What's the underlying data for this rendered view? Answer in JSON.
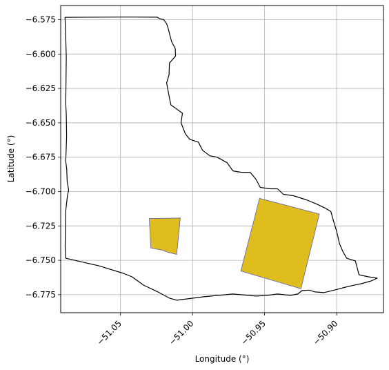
{
  "chart_data": {
    "type": "map",
    "title": "",
    "xlabel": "Longitude (°)",
    "ylabel": "Latitude (°)",
    "xlim": [
      -51.0915,
      -50.8675
    ],
    "ylim": [
      -6.7881,
      -6.5647
    ],
    "grid": true,
    "xticks": [
      -51.05,
      -51.0,
      -50.95,
      -50.9
    ],
    "xtick_labels": [
      "−51.05",
      "−51.00",
      "−50.95",
      "−50.90"
    ],
    "yticks": [
      -6.575,
      -6.6,
      -6.625,
      -6.65,
      -6.675,
      -6.7,
      -6.725,
      -6.75,
      -6.775
    ],
    "ytick_labels": [
      "−6.575",
      "−6.600",
      "−6.625",
      "−6.650",
      "−6.675",
      "−6.700",
      "−6.725",
      "−6.750",
      "−6.775"
    ],
    "colors": {
      "boundary_stroke": "#000000",
      "patch_fill": "#e0bd1f",
      "patch_stroke": "#5d5cb0",
      "grid": "#b0b0b0"
    },
    "boundary": [
      [
        -51.0885,
        -6.5733
      ],
      [
        -51.0445,
        -6.5731
      ],
      [
        -51.0245,
        -6.5732
      ],
      [
        -51.023,
        -6.5742
      ],
      [
        -51.02,
        -6.575
      ],
      [
        -51.018,
        -6.5779
      ],
      [
        -51.017,
        -6.581
      ],
      [
        -51.0155,
        -6.5872
      ],
      [
        -51.0145,
        -6.591
      ],
      [
        -51.012,
        -6.596
      ],
      [
        -51.0118,
        -6.6015
      ],
      [
        -51.016,
        -6.6065
      ],
      [
        -51.0163,
        -6.615
      ],
      [
        -51.018,
        -6.621
      ],
      [
        -51.016,
        -6.632
      ],
      [
        -51.015,
        -6.637
      ],
      [
        -51.011,
        -6.64
      ],
      [
        -51.007,
        -6.643
      ],
      [
        -51.008,
        -6.65
      ],
      [
        -51.005,
        -6.658
      ],
      [
        -51.002,
        -6.662
      ],
      [
        -50.996,
        -6.664
      ],
      [
        -50.993,
        -6.67
      ],
      [
        -50.988,
        -6.674
      ],
      [
        -50.983,
        -6.675
      ],
      [
        -50.976,
        -6.679
      ],
      [
        -50.972,
        -6.685
      ],
      [
        -50.966,
        -6.686
      ],
      [
        -50.96,
        -6.686
      ],
      [
        -50.956,
        -6.691
      ],
      [
        -50.953,
        -6.697
      ],
      [
        -50.946,
        -6.698
      ],
      [
        -50.941,
        -6.698
      ],
      [
        -50.937,
        -6.702
      ],
      [
        -50.93,
        -6.703
      ],
      [
        -50.921,
        -6.706
      ],
      [
        -50.914,
        -6.709
      ],
      [
        -50.908,
        -6.712
      ],
      [
        -50.904,
        -6.7145
      ],
      [
        -50.902,
        -6.722
      ],
      [
        -50.9,
        -6.729
      ],
      [
        -50.898,
        -6.738
      ],
      [
        -50.8955,
        -6.744
      ],
      [
        -50.893,
        -6.7485
      ],
      [
        -50.887,
        -6.7505
      ],
      [
        -50.8845,
        -6.7605
      ],
      [
        -50.878,
        -6.762
      ],
      [
        -50.8718,
        -6.763
      ],
      [
        -50.876,
        -6.765
      ],
      [
        -50.883,
        -6.767
      ],
      [
        -50.892,
        -6.769
      ],
      [
        -50.901,
        -6.7715
      ],
      [
        -50.909,
        -6.7735
      ],
      [
        -50.915,
        -6.773
      ],
      [
        -50.919,
        -6.7717
      ],
      [
        -50.924,
        -6.772
      ],
      [
        -50.927,
        -6.7745
      ],
      [
        -50.932,
        -6.7755
      ],
      [
        -50.941,
        -6.7745
      ],
      [
        -50.948,
        -6.7755
      ],
      [
        -50.956,
        -6.776
      ],
      [
        -50.972,
        -6.7745
      ],
      [
        -50.992,
        -6.7765
      ],
      [
        -51.011,
        -6.779
      ],
      [
        -51.016,
        -6.7775
      ],
      [
        -51.024,
        -6.773
      ],
      [
        -51.034,
        -6.768
      ],
      [
        -51.042,
        -6.762
      ],
      [
        -51.048,
        -6.7595
      ],
      [
        -51.065,
        -6.754
      ],
      [
        -51.088,
        -6.7485
      ],
      [
        -51.0884,
        -6.74
      ],
      [
        -51.0882,
        -6.728
      ],
      [
        -51.088,
        -6.714
      ],
      [
        -51.0868,
        -6.703
      ],
      [
        -51.086,
        -6.699
      ],
      [
        -51.087,
        -6.6925
      ],
      [
        -51.0873,
        -6.684
      ],
      [
        -51.088,
        -6.678
      ],
      [
        -51.0874,
        -6.66
      ],
      [
        -51.0876,
        -6.644
      ],
      [
        -51.088,
        -6.636
      ],
      [
        -51.0878,
        -6.62
      ],
      [
        -51.0876,
        -6.602
      ],
      [
        -51.088,
        -6.588
      ],
      [
        -51.0885,
        -6.5733
      ]
    ],
    "patches": [
      {
        "coords": [
          [
            -51.03,
            -6.7196
          ],
          [
            -51.0085,
            -6.7192
          ],
          [
            -51.011,
            -6.7457
          ],
          [
            -51.017,
            -6.7442
          ],
          [
            -51.0205,
            -6.7427
          ],
          [
            -51.029,
            -6.741
          ],
          [
            -51.03,
            -6.7196
          ]
        ]
      },
      {
        "coords": [
          [
            -50.9535,
            -6.7049
          ],
          [
            -50.912,
            -6.7163
          ],
          [
            -50.9248,
            -6.7707
          ],
          [
            -50.9665,
            -6.7578
          ],
          [
            -50.9535,
            -6.7049
          ]
        ]
      }
    ]
  }
}
